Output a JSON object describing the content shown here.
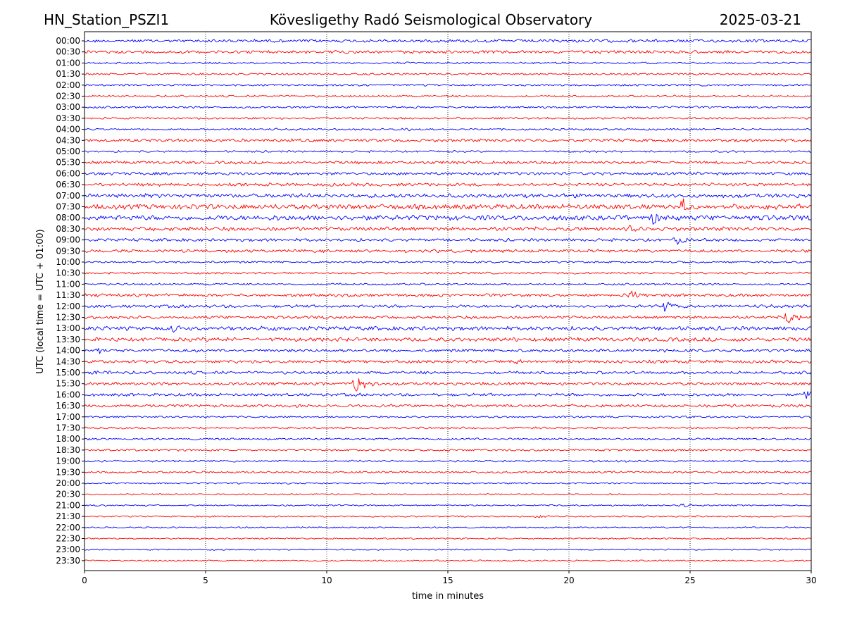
{
  "chart_data": {
    "type": "line",
    "subtype": "helicorder-seismogram",
    "title_left": "HN_Station_PSZI1",
    "title_center": "Kövesligethy Radó Seismological Observatory",
    "title_right": "2025-03-21",
    "xlabel": "time in minutes",
    "ylabel": "UTC (local time = UTC + 01:00)",
    "xlim": [
      0,
      30
    ],
    "x_ticks": [
      0,
      5,
      10,
      15,
      20,
      25,
      30
    ],
    "grid": "vertical dotted at each x tick",
    "row_labels": [
      "00:00",
      "00:30",
      "01:00",
      "01:30",
      "02:00",
      "02:30",
      "03:00",
      "03:30",
      "04:00",
      "04:30",
      "05:00",
      "05:30",
      "06:00",
      "06:30",
      "07:00",
      "07:30",
      "08:00",
      "08:30",
      "09:00",
      "09:30",
      "10:00",
      "10:30",
      "11:00",
      "11:30",
      "12:00",
      "12:30",
      "13:00",
      "13:30",
      "14:00",
      "14:30",
      "15:00",
      "15:30",
      "16:00",
      "16:30",
      "17:00",
      "17:30",
      "18:00",
      "18:30",
      "19:00",
      "19:30",
      "20:00",
      "20:30",
      "21:00",
      "21:30",
      "22:00",
      "22:30",
      "23:00",
      "23:30"
    ],
    "series_colors": [
      "#0000ff",
      "#ff0000"
    ],
    "color_rule": "rows alternate blue (hh:00) and red (hh:30)",
    "noise_level": [
      3,
      3,
      2,
      2,
      2,
      2,
      2,
      2,
      2,
      3,
      2,
      3,
      3,
      3,
      4,
      5,
      5,
      4,
      3,
      3,
      2,
      2,
      2,
      3,
      3,
      3,
      4,
      4,
      3,
      3,
      3,
      3,
      3,
      3,
      2,
      2,
      2,
      2,
      2,
      2,
      1.5,
      1.5,
      1.5,
      1.5,
      1.5,
      1.5,
      1.5,
      1.5
    ],
    "events": [
      {
        "row": "04:00",
        "minute": 13.2,
        "amplitude": 4
      },
      {
        "row": "07:30",
        "minute": 24.7,
        "amplitude": 10
      },
      {
        "row": "07:30",
        "minute": 28.2,
        "amplitude": 8
      },
      {
        "row": "08:00",
        "minute": 23.5,
        "amplitude": 9
      },
      {
        "row": "08:30",
        "minute": 22.5,
        "amplitude": 6
      },
      {
        "row": "09:00",
        "minute": 24.5,
        "amplitude": 8
      },
      {
        "row": "11:30",
        "minute": 22.6,
        "amplitude": 6
      },
      {
        "row": "12:00",
        "minute": 24.0,
        "amplitude": 11
      },
      {
        "row": "12:30",
        "minute": 29.0,
        "amplitude": 9
      },
      {
        "row": "13:00",
        "minute": 3.7,
        "amplitude": 6
      },
      {
        "row": "13:00",
        "minute": 8.0,
        "amplitude": 7
      },
      {
        "row": "14:00",
        "minute": 0.6,
        "amplitude": 4
      },
      {
        "row": "14:30",
        "minute": 17.8,
        "amplitude": 4
      },
      {
        "row": "15:00",
        "minute": 0.4,
        "amplitude": 6
      },
      {
        "row": "15:30",
        "minute": 11.2,
        "amplitude": 14
      },
      {
        "row": "16:00",
        "minute": 29.8,
        "amplitude": 7
      },
      {
        "row": "21:00",
        "minute": 24.7,
        "amplitude": 3
      },
      {
        "row": "21:30",
        "minute": 18.7,
        "amplitude": 3
      }
    ]
  }
}
